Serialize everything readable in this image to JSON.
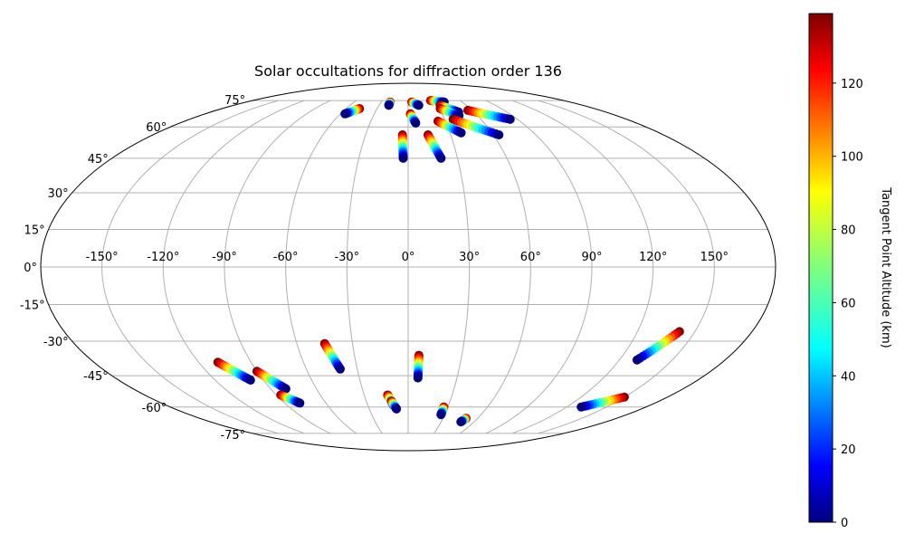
{
  "chart_data": {
    "type": "scatter",
    "projection": "mollweide",
    "title": "Solar occultations for diffraction order 136",
    "lon_ticks": [
      -150,
      -120,
      -90,
      -60,
      -30,
      0,
      30,
      60,
      90,
      120,
      150
    ],
    "lon_tick_labels": [
      "-150°",
      "-120°",
      "-90°",
      "-60°",
      "-30°",
      "0°",
      "30°",
      "60°",
      "90°",
      "120°",
      "150°"
    ],
    "lat_ticks": [
      75,
      60,
      45,
      30,
      15,
      0,
      -15,
      -30,
      -45,
      -60,
      -75
    ],
    "lat_tick_labels": [
      "75°",
      "60°",
      "45°",
      "30°",
      "15°",
      "0°",
      "-15°",
      "-30°",
      "-45°",
      "-60°",
      "-75°"
    ],
    "grid": true,
    "colorbar": {
      "label": "Tangent Point Altitude (km)",
      "colormap": "jet",
      "vmin": 0,
      "vmax": 139,
      "ticks": [
        0,
        20,
        40,
        60,
        80,
        100,
        120
      ],
      "tick_labels": [
        "0",
        "20",
        "40",
        "60",
        "80",
        "100",
        "120"
      ]
    },
    "series": [
      {
        "lon_start": -47,
        "lat_start": 70,
        "lon_end": -56,
        "lat_end": 67
      },
      {
        "lon_start": -20,
        "lat_start": 74,
        "lon_end": -20,
        "lat_end": 72
      },
      {
        "lon_start": 4,
        "lat_start": 74,
        "lon_end": 11,
        "lat_end": 72
      },
      {
        "lon_start": 26,
        "lat_start": 75,
        "lon_end": 40,
        "lat_end": 74
      },
      {
        "lon_start": 33,
        "lat_start": 72,
        "lon_end": 46,
        "lat_end": 68
      },
      {
        "lon_start": 31,
        "lat_start": 70,
        "lon_end": 44,
        "lat_end": 66
      },
      {
        "lon_start": 56,
        "lat_start": 69,
        "lon_end": 84,
        "lat_end": 64
      },
      {
        "lon_start": 37,
        "lat_start": 64,
        "lon_end": 64,
        "lat_end": 56
      },
      {
        "lon_start": 24,
        "lat_start": 63,
        "lon_end": 38,
        "lat_end": 57
      },
      {
        "lon_start": 2,
        "lat_start": 67,
        "lon_end": 6,
        "lat_end": 62
      },
      {
        "lon_start": -4,
        "lat_start": 56,
        "lon_end": -3,
        "lat_end": 45
      },
      {
        "lon_start": 14,
        "lat_start": 56,
        "lon_end": 20,
        "lat_end": 45
      },
      {
        "lon_start": -109,
        "lat_start": -39,
        "lon_end": -98,
        "lat_end": -47
      },
      {
        "lon_start": -90,
        "lat_start": -43,
        "lon_end": -80,
        "lat_end": -51
      },
      {
        "lon_start": -87,
        "lat_start": -54,
        "lon_end": -79,
        "lat_end": -58
      },
      {
        "lon_start": -45,
        "lat_start": -31,
        "lon_end": -40,
        "lat_end": -42
      },
      {
        "lon_start": 6,
        "lat_start": -36,
        "lon_end": 6,
        "lat_end": -46
      },
      {
        "lon_start": -14,
        "lat_start": -54,
        "lon_end": -11,
        "lat_end": -59
      },
      {
        "lon_start": -12,
        "lat_start": -57,
        "lon_end": -9,
        "lat_end": -61
      },
      {
        "lon_start": 27,
        "lat_start": -60,
        "lon_end": 27,
        "lat_end": -64
      },
      {
        "lon_start": 50,
        "lat_start": -66,
        "lon_end": 48,
        "lat_end": -68
      },
      {
        "lon_start": 142,
        "lat_start": -26,
        "lon_end": 130,
        "lat_end": -38
      },
      {
        "lon_start": 150,
        "lat_start": -55,
        "lon_end": 131,
        "lat_end": -60
      }
    ],
    "series_value_note_removed": true
  }
}
